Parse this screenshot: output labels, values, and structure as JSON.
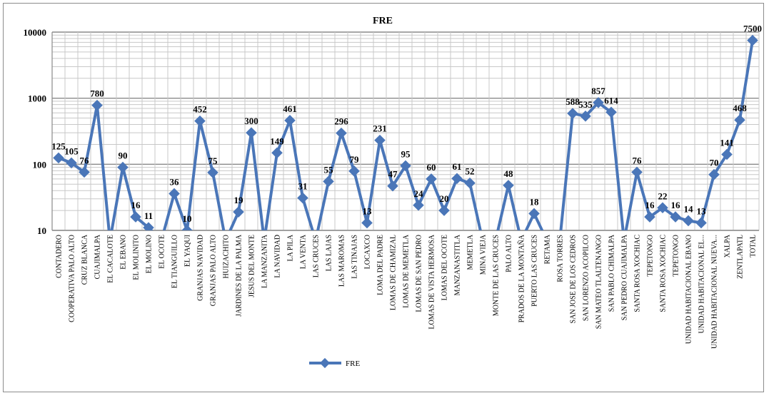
{
  "chart_data": {
    "type": "line",
    "title": "FRE",
    "y_scale": "log",
    "ylim": [
      10,
      10000
    ],
    "y_ticks": [
      "10",
      "100",
      "1000",
      "10000"
    ],
    "grid": true,
    "legend_position": "bottom",
    "color": "#4a76b8",
    "categories": [
      "CONTADERO",
      "COOPERATIVA PALO ALTO",
      "CRUZ BLANCA",
      "CUAJIMALPA",
      "EL CACALOTE",
      "EL EBANO",
      "EL MOLINITO",
      "EL MOLINO",
      "EL OCOTE",
      "EL TIANGUILLO",
      "EL YAQUI",
      "GRANJAS NAVIDAD",
      "GRANJAS PALO ALTO",
      "HUIZACHITO",
      "JARDINES DE LA PALMA",
      "JESUS DEL MONTE",
      "LA MANZANITA",
      "LA NAVIDAD",
      "LA PILA",
      "LA VENTA",
      "LAS CRUCES",
      "LAS LAJAS",
      "LAS MAROMAS",
      "LAS TINAJAS",
      "LOCAXCO",
      "LOMA DEL PADRE",
      "LOMAS DE CHAMIZAL",
      "LOMAS DE MEMETLA",
      "LOMAS DE SAN PEDRO",
      "LOMAS DE VISTA HERMOSA",
      "LOMAS DEL OCOTE",
      "MANZANASTITLA",
      "MEMETLA",
      "MINA VIEJA",
      "MONTE DE LAS CRUCES",
      "PALO ALTO",
      "PRADOS DE LA MONTAÑA",
      "PUERTO LAS CRUCES",
      "RETAMA",
      "ROSA TORRES",
      "SAN JOSE DE LOS CEDROS",
      "SAN LORENZO ACOPILCO",
      "SAN MATEO TLALTENANGO",
      "SAN PABLO CHIMALPA",
      "SAN PEDRO CUAJIMALPA",
      "SANTA ROSA XOCHIAC",
      "TEPETONGO",
      "SANTA ROSA XOCHIAC",
      "TEPETONGO",
      "UNIDAD HABITACIONAL EBANO",
      "UNIDAD HABITACIONAL EL...",
      "UNIDAD HABITACIONAL NUEVA...",
      "XALPA",
      "ZENTLAPATL",
      "TOTAL"
    ],
    "series": [
      {
        "name": "FRE",
        "values": [
          125,
          105,
          76,
          780,
          null,
          90,
          16,
          11,
          null,
          36,
          10,
          452,
          75,
          null,
          19,
          300,
          null,
          149,
          461,
          31,
          null,
          55,
          296,
          79,
          13,
          231,
          47,
          95,
          24,
          60,
          20,
          61,
          52,
          null,
          null,
          48,
          null,
          18,
          null,
          null,
          588,
          535,
          857,
          614,
          null,
          76,
          16,
          22,
          16,
          14,
          13,
          70,
          141,
          468,
          7500
        ],
        "labels": [
          "125",
          "105",
          "76",
          "780",
          "",
          "90",
          "16",
          "11",
          "",
          "36",
          "10",
          "452",
          "75",
          "",
          "19",
          "300",
          "",
          "149",
          "461",
          "31",
          "",
          "55",
          "296",
          "79",
          "13",
          "231",
          "47",
          "95",
          "24",
          "60",
          "20",
          "61",
          "52",
          "",
          "",
          "48",
          "",
          "18",
          "",
          "",
          "588",
          "535",
          "857",
          "614",
          "",
          "76",
          "16",
          "22",
          "16",
          "14",
          "13",
          "70",
          "141",
          "468",
          "7500"
        ]
      }
    ]
  }
}
